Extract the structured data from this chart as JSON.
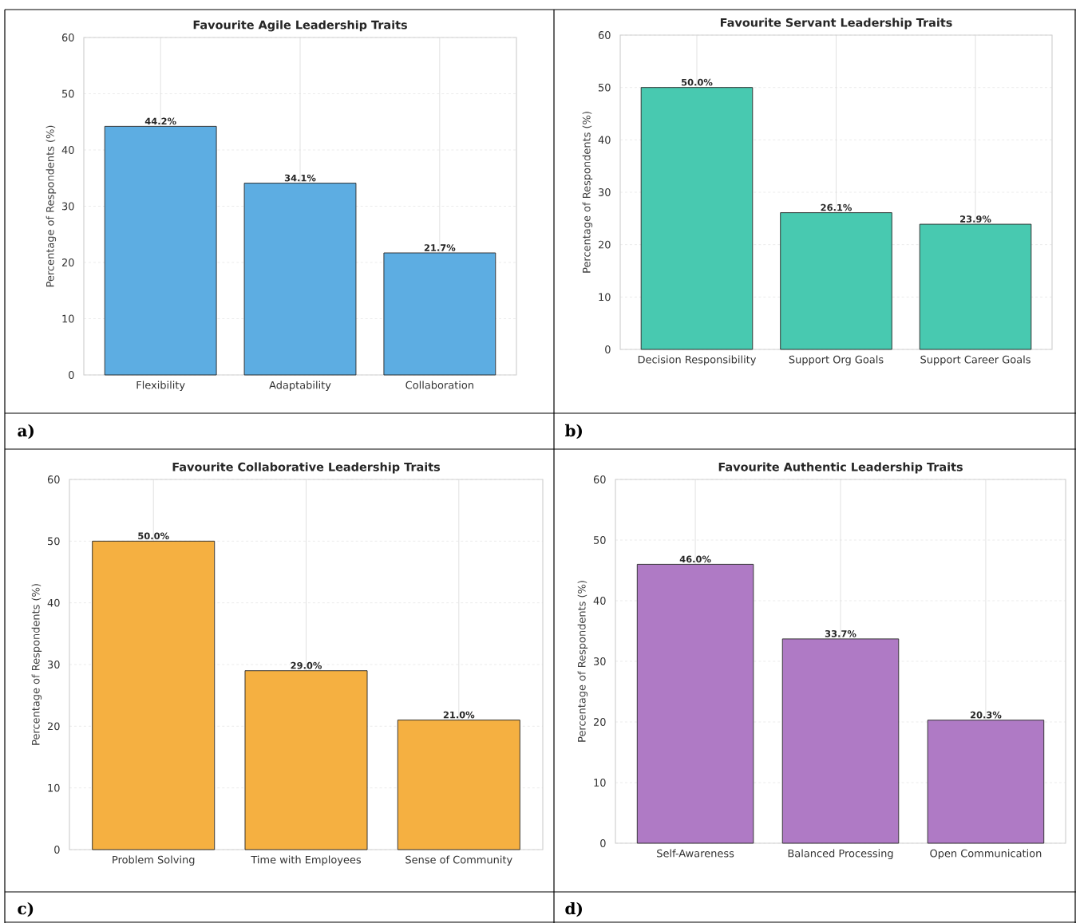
{
  "chart_data": [
    {
      "type": "bar",
      "title": "Favourite Agile Leadership Traits",
      "ylabel": "Percentage of Respondents (%)",
      "categories": [
        "Flexibility",
        "Adaptability",
        "Collaboration"
      ],
      "values": [
        44.2,
        34.1,
        21.7
      ],
      "value_labels": [
        "44.2%",
        "34.1%",
        "21.7%"
      ],
      "color": "#5dade2",
      "ylim": [
        0,
        60
      ],
      "yticks": [
        0,
        10,
        20,
        30,
        40,
        50,
        60
      ],
      "grid": true,
      "annotations": [
        "a)"
      ]
    },
    {
      "type": "bar",
      "title": "Favourite Servant Leadership Traits",
      "ylabel": "Percentage of Respondents (%)",
      "categories": [
        "Decision Responsibility",
        "Support Org Goals",
        "Support Career Goals"
      ],
      "values": [
        50.0,
        26.1,
        23.9
      ],
      "value_labels": [
        "50.0%",
        "26.1%",
        "23.9%"
      ],
      "color": "#48c9b0",
      "ylim": [
        0,
        60
      ],
      "yticks": [
        0,
        10,
        20,
        30,
        40,
        50,
        60
      ],
      "grid": true,
      "annotations": [
        "b)"
      ]
    },
    {
      "type": "bar",
      "title": "Favourite Collaborative Leadership Traits",
      "ylabel": "Percentage of Respondents (%)",
      "categories": [
        "Problem Solving",
        "Time with Employees",
        "Sense of Community"
      ],
      "values": [
        50.0,
        29.0,
        21.0
      ],
      "value_labels": [
        "50.0%",
        "29.0%",
        "21.0%"
      ],
      "color": "#f5b041",
      "ylim": [
        0,
        60
      ],
      "yticks": [
        0,
        10,
        20,
        30,
        40,
        50,
        60
      ],
      "grid": true,
      "annotations": [
        "c)"
      ]
    },
    {
      "type": "bar",
      "title": "Favourite Authentic Leadership Traits",
      "ylabel": "Percentage of Respondents (%)",
      "categories": [
        "Self-Awareness",
        "Balanced Processing",
        "Open Communication"
      ],
      "values": [
        46.0,
        33.7,
        20.3
      ],
      "value_labels": [
        "46.0%",
        "33.7%",
        "20.3%"
      ],
      "color": "#af7ac5",
      "ylim": [
        0,
        60
      ],
      "yticks": [
        0,
        10,
        20,
        30,
        40,
        50,
        60
      ],
      "grid": true,
      "annotations": [
        "d)"
      ]
    }
  ]
}
